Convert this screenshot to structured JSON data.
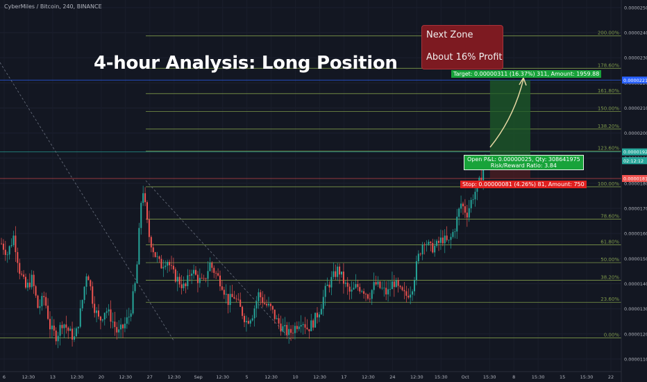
{
  "header": {
    "symbol": "CyberMiles / Bitcoin, 240, BINANCE",
    "headline": "4-hour Analysis: Long Position"
  },
  "annotations": {
    "zone_line1": "Next Zone",
    "zone_line2": "About 16% Profit",
    "target_label": "Target: 0.00000311 (16.37%) 311, Amount: 1959.88",
    "open_label_line1": "Open P&L: 0.00000025, Qty: 308641975",
    "open_label_line2": "Risk/Reward Ratio: 3.84",
    "stop_label": "Stop: 0.00000081 (4.26%) 81, Amount: 750"
  },
  "colors": {
    "background": "#131722",
    "up": "#26a69a",
    "down": "#ef5350",
    "fib": "#7f9a4a",
    "profit_zone": "#1e5c2a",
    "target_tag": "#18a33a",
    "stop_tag": "#e0201f",
    "zone_box": "#7d1a21"
  },
  "chart_data": {
    "type": "candlestick",
    "ylim": [
      1.05e-05,
      2.53e-05
    ],
    "y_ticks": [
      "0.00001100",
      "0.00001200",
      "0.00001300",
      "0.00001400",
      "0.00001500",
      "0.00001600",
      "0.00001700",
      "0.00001800",
      "0.00001900",
      "0.00002000",
      "0.00002100",
      "0.00002200",
      "0.00002300",
      "0.00002400",
      "0.00002500"
    ],
    "x_ticks": [
      "6",
      "12:30",
      "13",
      "12:30",
      "20",
      "12:30",
      "27",
      "12:30",
      "Sep",
      "12:30",
      "5",
      "12:30",
      "10",
      "12:30",
      "17",
      "12:30",
      "24",
      "12:30",
      "15:30",
      "Oct",
      "15:30",
      "8",
      "15:30",
      "15",
      "15:30",
      "22"
    ],
    "fib_levels": [
      {
        "label": "0.00%",
        "price": 1.184e-05
      },
      {
        "label": "23.60%",
        "price": 1.326e-05
      },
      {
        "label": "38.20%",
        "price": 1.414e-05
      },
      {
        "label": "50.00%",
        "price": 1.484e-05
      },
      {
        "label": "61.80%",
        "price": 1.555e-05
      },
      {
        "label": "78.60%",
        "price": 1.657e-05
      },
      {
        "label": "100.00%",
        "price": 1.786e-05
      },
      {
        "label": "123.60%",
        "price": 1.928e-05
      },
      {
        "label": "138.20%",
        "price": 2.016e-05
      },
      {
        "label": "150.00%",
        "price": 2.086e-05
      },
      {
        "label": "161.80%",
        "price": 2.157e-05
      },
      {
        "label": "178.60%",
        "price": 2.258e-05
      },
      {
        "label": "200.00%",
        "price": 2.387e-05
      }
    ],
    "highlight_prices": [
      {
        "label": "0.00002211",
        "price": 2.211e-05,
        "color": "#2962ff"
      },
      {
        "label": "0.00001925",
        "price": 1.925e-05,
        "color": "#26a69a"
      },
      {
        "label": "02:12:12",
        "price": 1.89e-05,
        "color": "#26a69a"
      },
      {
        "label": "0.00001819",
        "price": 1.819e-05,
        "color": "#ef5350"
      }
    ],
    "position": {
      "entry": 1.9e-05,
      "target": 2.211e-05,
      "stop": 1.819e-05
    },
    "close_path": [
      1.56e-05,
      1.52e-05,
      1.59e-05,
      1.45e-05,
      1.38e-05,
      1.42e-05,
      1.3e-05,
      1.35e-05,
      1.22e-05,
      1.19e-05,
      1.25e-05,
      1.21e-05,
      1.18e-05,
      1.3e-05,
      1.46e-05,
      1.32e-05,
      1.25e-05,
      1.3e-05,
      1.26e-05,
      1.2e-05,
      1.23e-05,
      1.28e-05,
      1.42e-05,
      1.8e-05,
      1.6e-05,
      1.52e-05,
      1.47e-05,
      1.5e-05,
      1.44e-05,
      1.41e-05,
      1.38e-05,
      1.46e-05,
      1.42e-05,
      1.4e-05,
      1.48e-05,
      1.44e-05,
      1.4e-05,
      1.33e-05,
      1.35e-05,
      1.3e-05,
      1.25e-05,
      1.28e-05,
      1.36e-05,
      1.32e-05,
      1.3e-05,
      1.25e-05,
      1.22e-05,
      1.2e-05,
      1.23e-05,
      1.26e-05,
      1.22e-05,
      1.25e-05,
      1.3e-05,
      1.38e-05,
      1.42e-05,
      1.46e-05,
      1.4e-05,
      1.36e-05,
      1.39e-05,
      1.38e-05,
      1.35e-05,
      1.4e-05,
      1.38e-05,
      1.36e-05,
      1.41e-05,
      1.37e-05,
      1.35e-05,
      1.38e-05,
      1.5e-05,
      1.58e-05,
      1.54e-05,
      1.55e-05,
      1.58e-05,
      1.56e-05,
      1.62e-05,
      1.72e-05,
      1.68e-05,
      1.75e-05,
      1.8e-05,
      1.9e-05
    ]
  }
}
